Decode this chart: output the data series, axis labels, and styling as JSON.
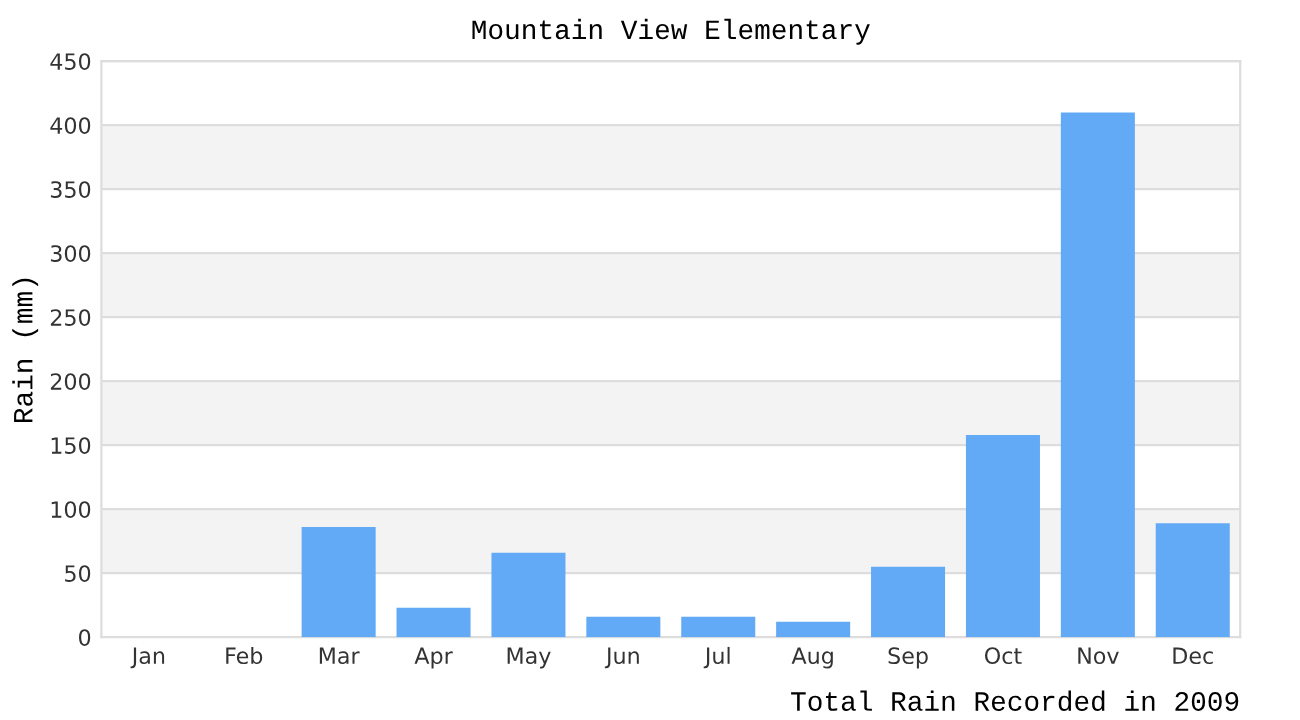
{
  "chart_data": {
    "type": "bar",
    "title": "Mountain View Elementary",
    "ylabel": "Rain (mm)",
    "categories": [
      "Jan",
      "Feb",
      "Mar",
      "Apr",
      "May",
      "Jun",
      "Jul",
      "Aug",
      "Sep",
      "Oct",
      "Nov",
      "Dec"
    ],
    "values": [
      0,
      0,
      86,
      23,
      66,
      16,
      16,
      12,
      55,
      158,
      410,
      89
    ],
    "color": "#62a9f6",
    "ylim": [
      0,
      450
    ],
    "yticks": [
      0,
      50,
      100,
      150,
      200,
      250,
      300,
      350,
      400,
      450
    ],
    "grid": "y",
    "annotations": [
      "Total Rain Recorded in 2009"
    ]
  }
}
